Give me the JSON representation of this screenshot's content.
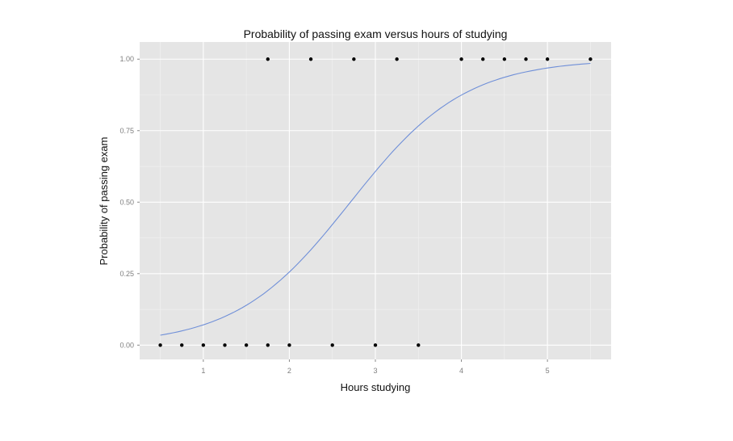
{
  "chart_data": {
    "type": "scatter",
    "title": "Probability of passing exam versus hours of studying",
    "xlabel": "Hours studying",
    "ylabel": "Probability of passing exam",
    "xlim": [
      0.26,
      5.74
    ],
    "ylim": [
      -0.05,
      1.06
    ],
    "xticks": [
      1,
      2,
      3,
      4,
      5
    ],
    "xtick_labels": [
      "1",
      "2",
      "3",
      "4",
      "5"
    ],
    "yticks": [
      0,
      0.25,
      0.5,
      0.75,
      1
    ],
    "ytick_labels": [
      "0.00",
      "0.25",
      "0.50",
      "0.75",
      "1.00"
    ],
    "grid": true,
    "panel_background": "#e5e5e5",
    "points": {
      "x": [
        0.5,
        0.75,
        1.0,
        1.25,
        1.5,
        1.75,
        1.75,
        2.0,
        2.25,
        2.5,
        2.75,
        3.0,
        3.25,
        3.5,
        4.0,
        4.25,
        4.5,
        4.75,
        5.0,
        5.5
      ],
      "y": [
        0,
        0,
        0,
        0,
        0,
        0,
        1,
        0,
        1,
        0,
        1,
        0,
        1,
        0,
        1,
        1,
        1,
        1,
        1,
        1
      ],
      "color": "#000000"
    },
    "fit_curve": {
      "type": "logistic",
      "intercept": -4.0777,
      "slope": 1.5046,
      "x_range": [
        0.5,
        5.5
      ],
      "color": "#6f8fd8"
    }
  }
}
